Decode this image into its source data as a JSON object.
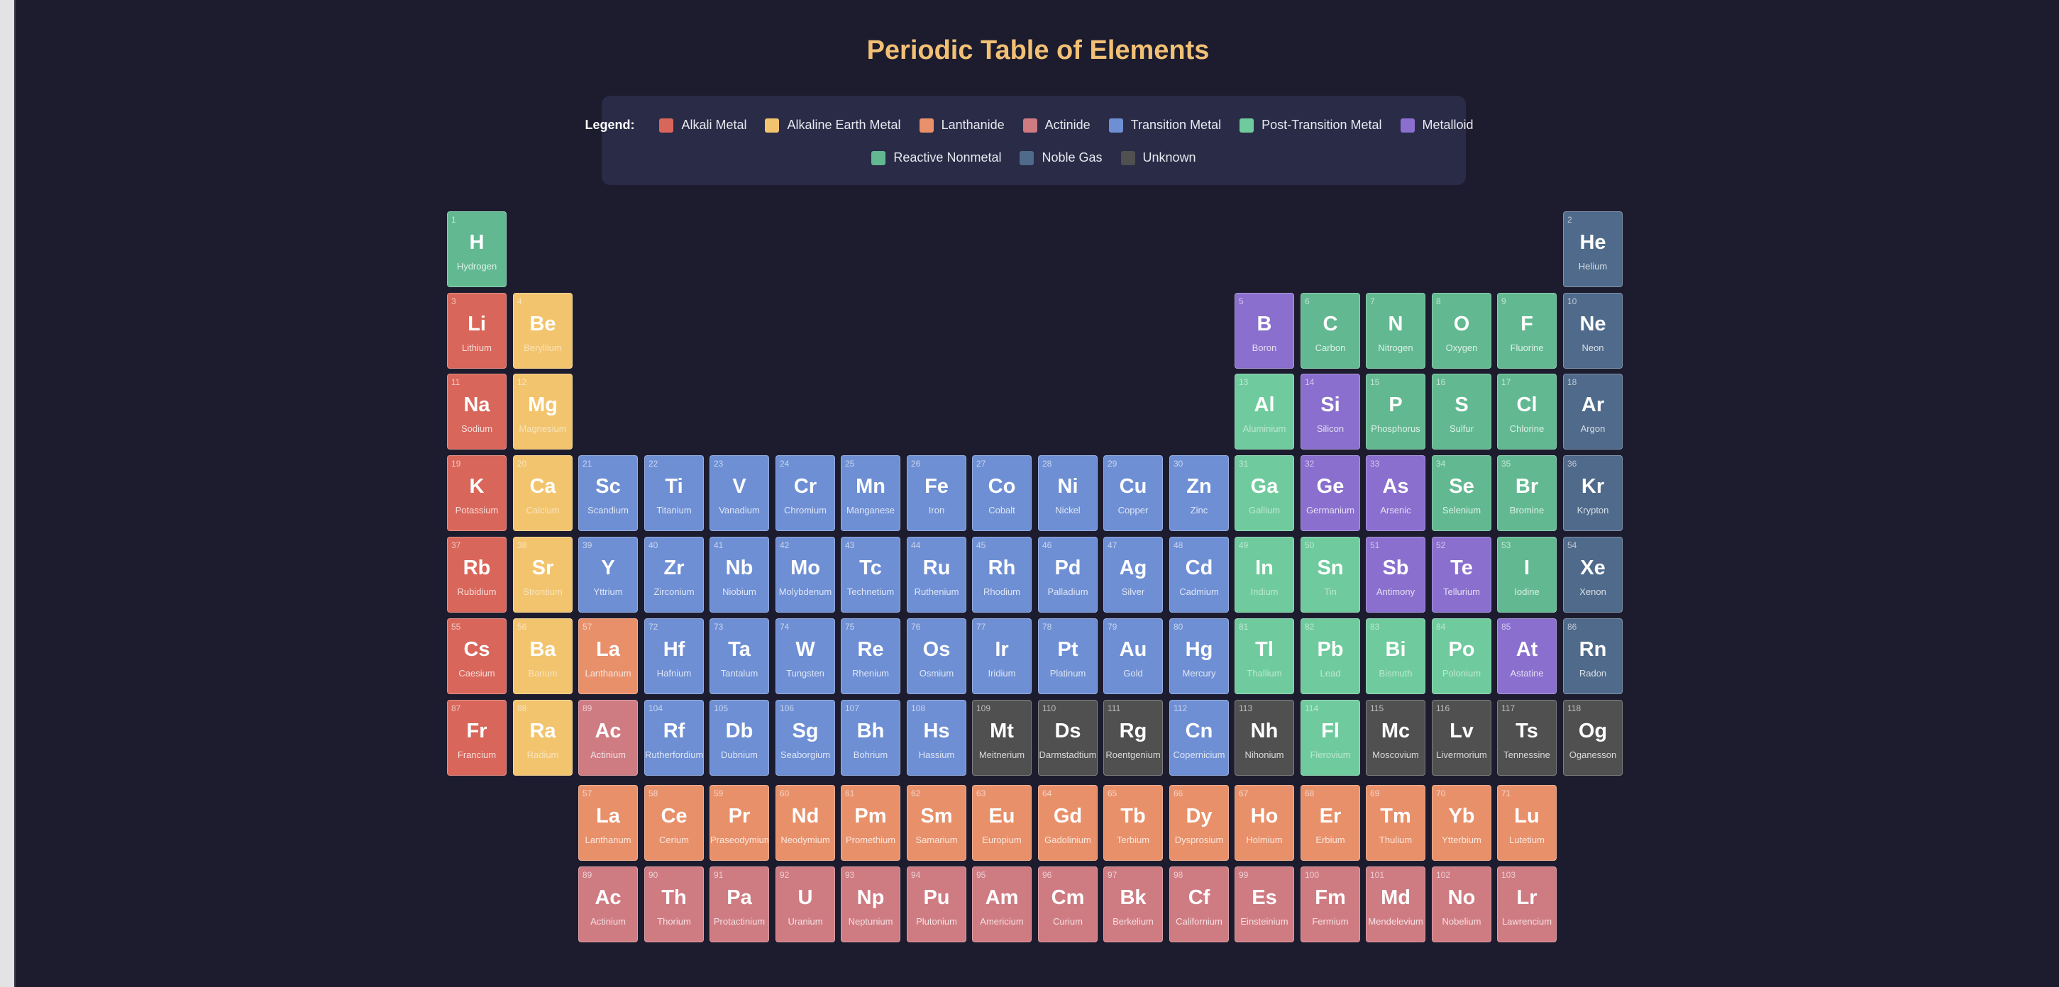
{
  "title": "Periodic Table of Elements",
  "legend": {
    "title": "Legend:",
    "items": [
      {
        "key": "alkali",
        "label": "Alkali Metal",
        "color": "#d9665a"
      },
      {
        "key": "alkaline",
        "label": "Alkaline Earth Metal",
        "color": "#f2c46e"
      },
      {
        "key": "lanthanide",
        "label": "Lanthanide",
        "color": "#e8906a"
      },
      {
        "key": "actinide",
        "label": "Actinide",
        "color": "#cf7b82"
      },
      {
        "key": "transition",
        "label": "Transition Metal",
        "color": "#6e8fd4"
      },
      {
        "key": "post",
        "label": "Post-Transition Metal",
        "color": "#6fcb9d"
      },
      {
        "key": "metalloid",
        "label": "Metalloid",
        "color": "#8a6fce"
      },
      {
        "key": "nonmetal",
        "label": "Reactive Nonmetal",
        "color": "#62b991"
      },
      {
        "key": "noble",
        "label": "Noble Gas",
        "color": "#4f6a8a"
      },
      {
        "key": "unknown",
        "label": "Unknown",
        "color": "#505050"
      }
    ]
  },
  "elements": [
    {
      "n": "1",
      "s": "H",
      "name": "Hydrogen",
      "cat": "nonmetal",
      "row": 1,
      "col": 1
    },
    {
      "n": "2",
      "s": "He",
      "name": "Helium",
      "cat": "noble",
      "row": 1,
      "col": 18
    },
    {
      "n": "3",
      "s": "Li",
      "name": "Lithium",
      "cat": "alkali",
      "row": 2,
      "col": 1
    },
    {
      "n": "4",
      "s": "Be",
      "name": "Beryllium",
      "cat": "alkaline",
      "row": 2,
      "col": 2
    },
    {
      "n": "5",
      "s": "B",
      "name": "Boron",
      "cat": "metalloid",
      "row": 2,
      "col": 13
    },
    {
      "n": "6",
      "s": "C",
      "name": "Carbon",
      "cat": "nonmetal",
      "row": 2,
      "col": 14
    },
    {
      "n": "7",
      "s": "N",
      "name": "Nitrogen",
      "cat": "nonmetal",
      "row": 2,
      "col": 15
    },
    {
      "n": "8",
      "s": "O",
      "name": "Oxygen",
      "cat": "nonmetal",
      "row": 2,
      "col": 16
    },
    {
      "n": "9",
      "s": "F",
      "name": "Fluorine",
      "cat": "nonmetal",
      "row": 2,
      "col": 17
    },
    {
      "n": "10",
      "s": "Ne",
      "name": "Neon",
      "cat": "noble",
      "row": 2,
      "col": 18
    },
    {
      "n": "11",
      "s": "Na",
      "name": "Sodium",
      "cat": "alkali",
      "row": 3,
      "col": 1
    },
    {
      "n": "12",
      "s": "Mg",
      "name": "Magnesium",
      "cat": "alkaline",
      "row": 3,
      "col": 2
    },
    {
      "n": "13",
      "s": "Al",
      "name": "Aluminium",
      "cat": "post",
      "row": 3,
      "col": 13
    },
    {
      "n": "14",
      "s": "Si",
      "name": "Silicon",
      "cat": "metalloid",
      "row": 3,
      "col": 14
    },
    {
      "n": "15",
      "s": "P",
      "name": "Phosphorus",
      "cat": "nonmetal",
      "row": 3,
      "col": 15
    },
    {
      "n": "16",
      "s": "S",
      "name": "Sulfur",
      "cat": "nonmetal",
      "row": 3,
      "col": 16
    },
    {
      "n": "17",
      "s": "Cl",
      "name": "Chlorine",
      "cat": "nonmetal",
      "row": 3,
      "col": 17
    },
    {
      "n": "18",
      "s": "Ar",
      "name": "Argon",
      "cat": "noble",
      "row": 3,
      "col": 18
    },
    {
      "n": "19",
      "s": "K",
      "name": "Potassium",
      "cat": "alkali",
      "row": 4,
      "col": 1
    },
    {
      "n": "20",
      "s": "Ca",
      "name": "Calcium",
      "cat": "alkaline",
      "row": 4,
      "col": 2
    },
    {
      "n": "21",
      "s": "Sc",
      "name": "Scandium",
      "cat": "transition",
      "row": 4,
      "col": 3
    },
    {
      "n": "22",
      "s": "Ti",
      "name": "Titanium",
      "cat": "transition",
      "row": 4,
      "col": 4
    },
    {
      "n": "23",
      "s": "V",
      "name": "Vanadium",
      "cat": "transition",
      "row": 4,
      "col": 5
    },
    {
      "n": "24",
      "s": "Cr",
      "name": "Chromium",
      "cat": "transition",
      "row": 4,
      "col": 6
    },
    {
      "n": "25",
      "s": "Mn",
      "name": "Manganese",
      "cat": "transition",
      "row": 4,
      "col": 7
    },
    {
      "n": "26",
      "s": "Fe",
      "name": "Iron",
      "cat": "transition",
      "row": 4,
      "col": 8
    },
    {
      "n": "27",
      "s": "Co",
      "name": "Cobalt",
      "cat": "transition",
      "row": 4,
      "col": 9
    },
    {
      "n": "28",
      "s": "Ni",
      "name": "Nickel",
      "cat": "transition",
      "row": 4,
      "col": 10
    },
    {
      "n": "29",
      "s": "Cu",
      "name": "Copper",
      "cat": "transition",
      "row": 4,
      "col": 11
    },
    {
      "n": "30",
      "s": "Zn",
      "name": "Zinc",
      "cat": "transition",
      "row": 4,
      "col": 12
    },
    {
      "n": "31",
      "s": "Ga",
      "name": "Gallium",
      "cat": "post",
      "row": 4,
      "col": 13
    },
    {
      "n": "32",
      "s": "Ge",
      "name": "Germanium",
      "cat": "metalloid",
      "row": 4,
      "col": 14
    },
    {
      "n": "33",
      "s": "As",
      "name": "Arsenic",
      "cat": "metalloid",
      "row": 4,
      "col": 15
    },
    {
      "n": "34",
      "s": "Se",
      "name": "Selenium",
      "cat": "nonmetal",
      "row": 4,
      "col": 16
    },
    {
      "n": "35",
      "s": "Br",
      "name": "Bromine",
      "cat": "nonmetal",
      "row": 4,
      "col": 17
    },
    {
      "n": "36",
      "s": "Kr",
      "name": "Krypton",
      "cat": "noble",
      "row": 4,
      "col": 18
    },
    {
      "n": "37",
      "s": "Rb",
      "name": "Rubidium",
      "cat": "alkali",
      "row": 5,
      "col": 1
    },
    {
      "n": "38",
      "s": "Sr",
      "name": "Strontium",
      "cat": "alkaline",
      "row": 5,
      "col": 2
    },
    {
      "n": "39",
      "s": "Y",
      "name": "Yttrium",
      "cat": "transition",
      "row": 5,
      "col": 3
    },
    {
      "n": "40",
      "s": "Zr",
      "name": "Zirconium",
      "cat": "transition",
      "row": 5,
      "col": 4
    },
    {
      "n": "41",
      "s": "Nb",
      "name": "Niobium",
      "cat": "transition",
      "row": 5,
      "col": 5
    },
    {
      "n": "42",
      "s": "Mo",
      "name": "Molybdenum",
      "cat": "transition",
      "row": 5,
      "col": 6
    },
    {
      "n": "43",
      "s": "Tc",
      "name": "Technetium",
      "cat": "transition",
      "row": 5,
      "col": 7
    },
    {
      "n": "44",
      "s": "Ru",
      "name": "Ruthenium",
      "cat": "transition",
      "row": 5,
      "col": 8
    },
    {
      "n": "45",
      "s": "Rh",
      "name": "Rhodium",
      "cat": "transition",
      "row": 5,
      "col": 9
    },
    {
      "n": "46",
      "s": "Pd",
      "name": "Palladium",
      "cat": "transition",
      "row": 5,
      "col": 10
    },
    {
      "n": "47",
      "s": "Ag",
      "name": "Silver",
      "cat": "transition",
      "row": 5,
      "col": 11
    },
    {
      "n": "48",
      "s": "Cd",
      "name": "Cadmium",
      "cat": "transition",
      "row": 5,
      "col": 12
    },
    {
      "n": "49",
      "s": "In",
      "name": "Indium",
      "cat": "post",
      "row": 5,
      "col": 13
    },
    {
      "n": "50",
      "s": "Sn",
      "name": "Tin",
      "cat": "post",
      "row": 5,
      "col": 14
    },
    {
      "n": "51",
      "s": "Sb",
      "name": "Antimony",
      "cat": "metalloid",
      "row": 5,
      "col": 15
    },
    {
      "n": "52",
      "s": "Te",
      "name": "Tellurium",
      "cat": "metalloid",
      "row": 5,
      "col": 16
    },
    {
      "n": "53",
      "s": "I",
      "name": "Iodine",
      "cat": "nonmetal",
      "row": 5,
      "col": 17
    },
    {
      "n": "54",
      "s": "Xe",
      "name": "Xenon",
      "cat": "noble",
      "row": 5,
      "col": 18
    },
    {
      "n": "55",
      "s": "Cs",
      "name": "Caesium",
      "cat": "alkali",
      "row": 6,
      "col": 1
    },
    {
      "n": "56",
      "s": "Ba",
      "name": "Barium",
      "cat": "alkaline",
      "row": 6,
      "col": 2
    },
    {
      "n": "57",
      "s": "La",
      "name": "Lanthanum",
      "cat": "lanthanide",
      "row": 6,
      "col": 3
    },
    {
      "n": "72",
      "s": "Hf",
      "name": "Hafnium",
      "cat": "transition",
      "row": 6,
      "col": 4
    },
    {
      "n": "73",
      "s": "Ta",
      "name": "Tantalum",
      "cat": "transition",
      "row": 6,
      "col": 5
    },
    {
      "n": "74",
      "s": "W",
      "name": "Tungsten",
      "cat": "transition",
      "row": 6,
      "col": 6
    },
    {
      "n": "75",
      "s": "Re",
      "name": "Rhenium",
      "cat": "transition",
      "row": 6,
      "col": 7
    },
    {
      "n": "76",
      "s": "Os",
      "name": "Osmium",
      "cat": "transition",
      "row": 6,
      "col": 8
    },
    {
      "n": "77",
      "s": "Ir",
      "name": "Iridium",
      "cat": "transition",
      "row": 6,
      "col": 9
    },
    {
      "n": "78",
      "s": "Pt",
      "name": "Platinum",
      "cat": "transition",
      "row": 6,
      "col": 10
    },
    {
      "n": "79",
      "s": "Au",
      "name": "Gold",
      "cat": "transition",
      "row": 6,
      "col": 11
    },
    {
      "n": "80",
      "s": "Hg",
      "name": "Mercury",
      "cat": "transition",
      "row": 6,
      "col": 12
    },
    {
      "n": "81",
      "s": "Tl",
      "name": "Thallium",
      "cat": "post",
      "row": 6,
      "col": 13
    },
    {
      "n": "82",
      "s": "Pb",
      "name": "Lead",
      "cat": "post",
      "row": 6,
      "col": 14
    },
    {
      "n": "83",
      "s": "Bi",
      "name": "Bismuth",
      "cat": "post",
      "row": 6,
      "col": 15
    },
    {
      "n": "84",
      "s": "Po",
      "name": "Polonium",
      "cat": "post",
      "row": 6,
      "col": 16
    },
    {
      "n": "85",
      "s": "At",
      "name": "Astatine",
      "cat": "metalloid",
      "row": 6,
      "col": 17
    },
    {
      "n": "86",
      "s": "Rn",
      "name": "Radon",
      "cat": "noble",
      "row": 6,
      "col": 18
    },
    {
      "n": "87",
      "s": "Fr",
      "name": "Francium",
      "cat": "alkali",
      "row": 7,
      "col": 1
    },
    {
      "n": "88",
      "s": "Ra",
      "name": "Radium",
      "cat": "alkaline",
      "row": 7,
      "col": 2
    },
    {
      "n": "89",
      "s": "Ac",
      "name": "Actinium",
      "cat": "actinide",
      "row": 7,
      "col": 3
    },
    {
      "n": "104",
      "s": "Rf",
      "name": "Rutherfordium",
      "cat": "transition",
      "row": 7,
      "col": 4
    },
    {
      "n": "105",
      "s": "Db",
      "name": "Dubnium",
      "cat": "transition",
      "row": 7,
      "col": 5
    },
    {
      "n": "106",
      "s": "Sg",
      "name": "Seaborgium",
      "cat": "transition",
      "row": 7,
      "col": 6
    },
    {
      "n": "107",
      "s": "Bh",
      "name": "Bohrium",
      "cat": "transition",
      "row": 7,
      "col": 7
    },
    {
      "n": "108",
      "s": "Hs",
      "name": "Hassium",
      "cat": "transition",
      "row": 7,
      "col": 8
    },
    {
      "n": "109",
      "s": "Mt",
      "name": "Meitnerium",
      "cat": "unknown",
      "row": 7,
      "col": 9
    },
    {
      "n": "110",
      "s": "Ds",
      "name": "Darmstadtium",
      "cat": "unknown",
      "row": 7,
      "col": 10
    },
    {
      "n": "111",
      "s": "Rg",
      "name": "Roentgenium",
      "cat": "unknown",
      "row": 7,
      "col": 11
    },
    {
      "n": "112",
      "s": "Cn",
      "name": "Copernicium",
      "cat": "transition",
      "row": 7,
      "col": 12
    },
    {
      "n": "113",
      "s": "Nh",
      "name": "Nihonium",
      "cat": "unknown",
      "row": 7,
      "col": 13
    },
    {
      "n": "114",
      "s": "Fl",
      "name": "Flerovium",
      "cat": "post",
      "row": 7,
      "col": 14
    },
    {
      "n": "115",
      "s": "Mc",
      "name": "Moscovium",
      "cat": "unknown",
      "row": 7,
      "col": 15
    },
    {
      "n": "116",
      "s": "Lv",
      "name": "Livermorium",
      "cat": "unknown",
      "row": 7,
      "col": 16
    },
    {
      "n": "117",
      "s": "Ts",
      "name": "Tennessine",
      "cat": "unknown",
      "row": 7,
      "col": 17
    },
    {
      "n": "118",
      "s": "Og",
      "name": "Oganesson",
      "cat": "unknown",
      "row": 7,
      "col": 18
    },
    {
      "n": "57",
      "s": "La",
      "name": "Lanthanum",
      "cat": "lanthanide",
      "row": 8,
      "col": 3
    },
    {
      "n": "58",
      "s": "Ce",
      "name": "Cerium",
      "cat": "lanthanide",
      "row": 8,
      "col": 4
    },
    {
      "n": "59",
      "s": "Pr",
      "name": "Praseodymium",
      "cat": "lanthanide",
      "row": 8,
      "col": 5
    },
    {
      "n": "60",
      "s": "Nd",
      "name": "Neodymium",
      "cat": "lanthanide",
      "row": 8,
      "col": 6
    },
    {
      "n": "61",
      "s": "Pm",
      "name": "Promethium",
      "cat": "lanthanide",
      "row": 8,
      "col": 7
    },
    {
      "n": "62",
      "s": "Sm",
      "name": "Samarium",
      "cat": "lanthanide",
      "row": 8,
      "col": 8
    },
    {
      "n": "63",
      "s": "Eu",
      "name": "Europium",
      "cat": "lanthanide",
      "row": 8,
      "col": 9
    },
    {
      "n": "64",
      "s": "Gd",
      "name": "Gadolinium",
      "cat": "lanthanide",
      "row": 8,
      "col": 10
    },
    {
      "n": "65",
      "s": "Tb",
      "name": "Terbium",
      "cat": "lanthanide",
      "row": 8,
      "col": 11
    },
    {
      "n": "66",
      "s": "Dy",
      "name": "Dysprosium",
      "cat": "lanthanide",
      "row": 8,
      "col": 12
    },
    {
      "n": "67",
      "s": "Ho",
      "name": "Holmium",
      "cat": "lanthanide",
      "row": 8,
      "col": 13
    },
    {
      "n": "68",
      "s": "Er",
      "name": "Erbium",
      "cat": "lanthanide",
      "row": 8,
      "col": 14
    },
    {
      "n": "69",
      "s": "Tm",
      "name": "Thulium",
      "cat": "lanthanide",
      "row": 8,
      "col": 15
    },
    {
      "n": "70",
      "s": "Yb",
      "name": "Ytterbium",
      "cat": "lanthanide",
      "row": 8,
      "col": 16
    },
    {
      "n": "71",
      "s": "Lu",
      "name": "Lutetium",
      "cat": "lanthanide",
      "row": 8,
      "col": 17
    },
    {
      "n": "89",
      "s": "Ac",
      "name": "Actinium",
      "cat": "actinide",
      "row": 9,
      "col": 3
    },
    {
      "n": "90",
      "s": "Th",
      "name": "Thorium",
      "cat": "actinide",
      "row": 9,
      "col": 4
    },
    {
      "n": "91",
      "s": "Pa",
      "name": "Protactinium",
      "cat": "actinide",
      "row": 9,
      "col": 5
    },
    {
      "n": "92",
      "s": "U",
      "name": "Uranium",
      "cat": "actinide",
      "row": 9,
      "col": 6
    },
    {
      "n": "93",
      "s": "Np",
      "name": "Neptunium",
      "cat": "actinide",
      "row": 9,
      "col": 7
    },
    {
      "n": "94",
      "s": "Pu",
      "name": "Plutonium",
      "cat": "actinide",
      "row": 9,
      "col": 8
    },
    {
      "n": "95",
      "s": "Am",
      "name": "Americium",
      "cat": "actinide",
      "row": 9,
      "col": 9
    },
    {
      "n": "96",
      "s": "Cm",
      "name": "Curium",
      "cat": "actinide",
      "row": 9,
      "col": 10
    },
    {
      "n": "97",
      "s": "Bk",
      "name": "Berkelium",
      "cat": "actinide",
      "row": 9,
      "col": 11
    },
    {
      "n": "98",
      "s": "Cf",
      "name": "Californium",
      "cat": "actinide",
      "row": 9,
      "col": 12
    },
    {
      "n": "99",
      "s": "Es",
      "name": "Einsteinium",
      "cat": "actinide",
      "row": 9,
      "col": 13
    },
    {
      "n": "100",
      "s": "Fm",
      "name": "Fermium",
      "cat": "actinide",
      "row": 9,
      "col": 14
    },
    {
      "n": "101",
      "s": "Md",
      "name": "Mendelevium",
      "cat": "actinide",
      "row": 9,
      "col": 15
    },
    {
      "n": "102",
      "s": "No",
      "name": "Nobelium",
      "cat": "actinide",
      "row": 9,
      "col": 16
    },
    {
      "n": "103",
      "s": "Lr",
      "name": "Lawrencium",
      "cat": "actinide",
      "row": 9,
      "col": 17
    }
  ]
}
